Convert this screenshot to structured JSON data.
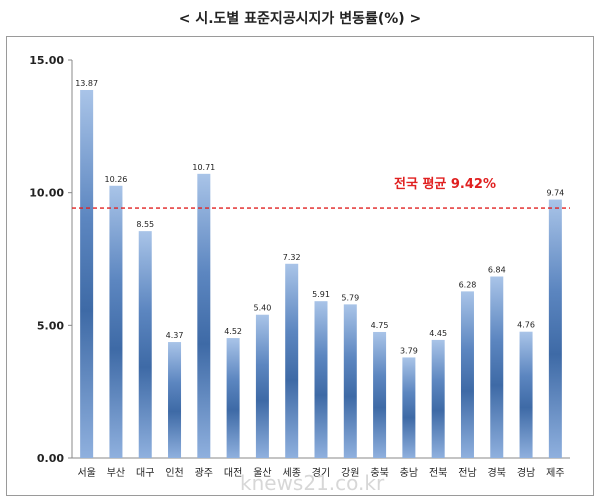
{
  "title": "< 시.도별 표준지공시지가 변동률(%) >",
  "chart_data": {
    "type": "bar",
    "categories": [
      "서울",
      "부산",
      "대구",
      "인천",
      "광주",
      "대전",
      "울산",
      "세종",
      "경기",
      "강원",
      "충북",
      "충남",
      "전북",
      "전남",
      "경북",
      "경남",
      "제주"
    ],
    "values": [
      13.87,
      10.26,
      8.55,
      4.37,
      10.71,
      4.52,
      5.4,
      7.32,
      5.91,
      5.79,
      4.75,
      3.79,
      4.45,
      6.28,
      6.84,
      4.76,
      9.74
    ],
    "data_labels": [
      "13.87",
      "10.26",
      "8.55",
      "4.37",
      "10.71",
      "4.52",
      "5.40",
      "7.32",
      "5.91",
      "5.79",
      "4.75",
      "3.79",
      "4.45",
      "6.28",
      "6.84",
      "4.76",
      "9.74"
    ],
    "ylim": [
      0,
      15
    ],
    "yticks": [
      "0.00",
      "5.00",
      "10.00",
      "15.00"
    ],
    "ytick_values": [
      0,
      5,
      10,
      15
    ],
    "reference_line": {
      "value": 9.42,
      "label": "전국 평균 9.42%",
      "color": "#e02020",
      "style": "dashed"
    },
    "grid": false,
    "bar_colors": {
      "light": "#a9c4e8",
      "dark": "#3e6aa6"
    },
    "watermark": "knews21.co.kr"
  }
}
